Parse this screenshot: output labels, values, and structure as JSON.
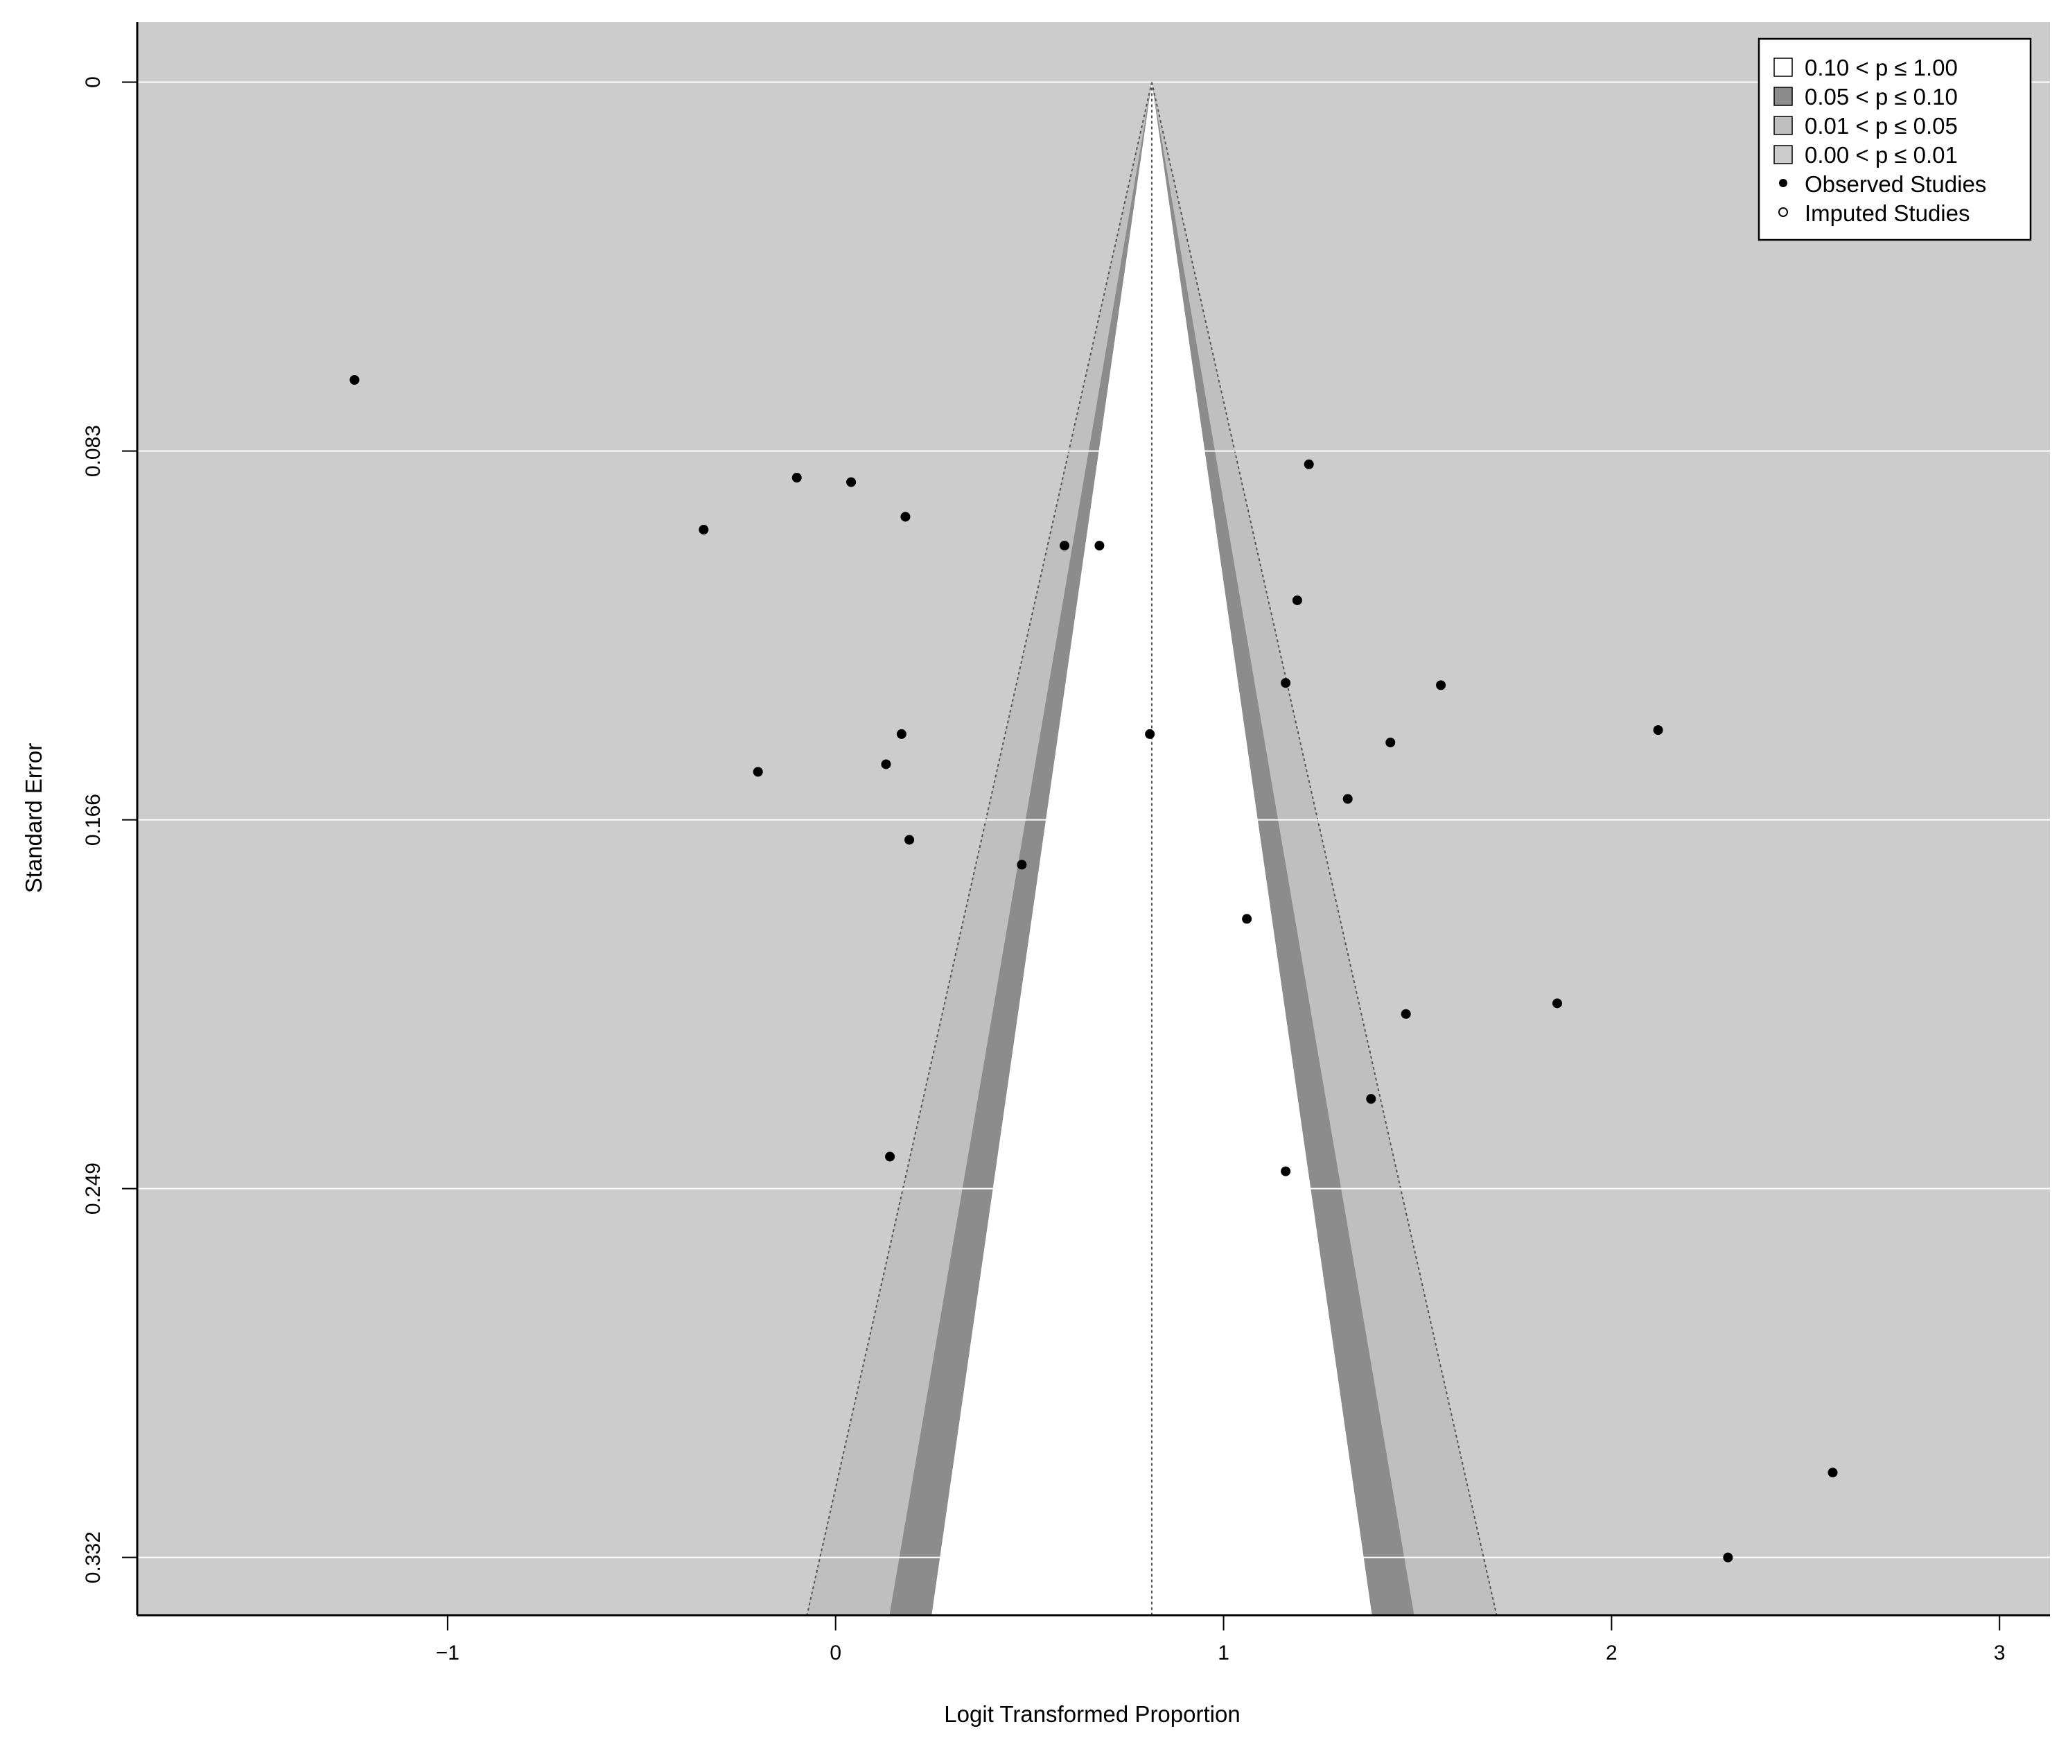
{
  "chart_data": {
    "type": "scatter",
    "subtype": "contour-enhanced funnel plot",
    "title": "",
    "xlabel": "Logit Transformed Proportion",
    "ylabel": "Standard Error",
    "xlim": [
      -1.8,
      3.13
    ],
    "ylim": [
      0.345,
      -0.0135
    ],
    "y_axis_reversed": true,
    "x_ticks": [
      -1,
      0,
      1,
      2,
      3
    ],
    "x_tick_labels": [
      "−1",
      "0",
      "1",
      "2",
      "3"
    ],
    "y_ticks": [
      0,
      0.083,
      0.166,
      0.249,
      0.332
    ],
    "y_tick_labels": [
      "0",
      "0.083",
      "0.166",
      "0.249",
      "0.332"
    ],
    "grid": "horizontal",
    "center_estimate": 0.815,
    "contour_levels": [
      {
        "label": "0.10 < p ≤ 1.00",
        "z": 1.645,
        "fill": "#ffffff"
      },
      {
        "label": "0.05 < p ≤ 0.10",
        "z": 1.96,
        "fill": "#8c8c8c"
      },
      {
        "label": "0.01 < p ≤ 0.05",
        "z": 2.576,
        "fill": "#bfbfbf"
      },
      {
        "label": "0.00 < p ≤ 0.01",
        "fill": "#cccccc"
      }
    ],
    "legend": {
      "position": "top-right",
      "entries": [
        {
          "label": "0.10 < p ≤ 1.00",
          "kind": "box",
          "fill": "#ffffff"
        },
        {
          "label": "0.05 < p ≤ 0.10",
          "kind": "box",
          "fill": "#8c8c8c"
        },
        {
          "label": "0.01 < p ≤ 0.05",
          "kind": "box",
          "fill": "#bfbfbf"
        },
        {
          "label": "0.00 < p ≤ 0.01",
          "kind": "box",
          "fill": "#cccccc"
        },
        {
          "label": "Observed Studies",
          "kind": "filled-point"
        },
        {
          "label": "Imputed Studies",
          "kind": "open-point"
        }
      ]
    },
    "series": [
      {
        "name": "Observed Studies",
        "points": [
          {
            "x": -1.24,
            "y": 0.067
          },
          {
            "x": 1.22,
            "y": 0.086
          },
          {
            "x": -0.1,
            "y": 0.089
          },
          {
            "x": 0.04,
            "y": 0.09
          },
          {
            "x": -0.34,
            "y": 0.1007
          },
          {
            "x": 0.18,
            "y": 0.0978
          },
          {
            "x": 0.59,
            "y": 0.1043
          },
          {
            "x": 0.68,
            "y": 0.1043
          },
          {
            "x": 1.19,
            "y": 0.1166
          },
          {
            "x": 1.16,
            "y": 0.1352
          },
          {
            "x": 1.56,
            "y": 0.1357
          },
          {
            "x": 0.17,
            "y": 0.1467
          },
          {
            "x": 0.81,
            "y": 0.1467
          },
          {
            "x": 2.12,
            "y": 0.1458
          },
          {
            "x": 1.43,
            "y": 0.1486
          },
          {
            "x": -0.2,
            "y": 0.1552
          },
          {
            "x": 0.13,
            "y": 0.1535
          },
          {
            "x": 1.32,
            "y": 0.1613
          },
          {
            "x": 0.19,
            "y": 0.1705
          },
          {
            "x": 0.48,
            "y": 0.1761
          },
          {
            "x": 1.06,
            "y": 0.1883
          },
          {
            "x": 1.86,
            "y": 0.2073
          },
          {
            "x": 1.47,
            "y": 0.2097
          },
          {
            "x": 1.38,
            "y": 0.2288
          },
          {
            "x": 0.14,
            "y": 0.2418
          },
          {
            "x": 1.16,
            "y": 0.2451
          },
          {
            "x": 2.57,
            "y": 0.3129
          },
          {
            "x": 2.3,
            "y": 0.332
          }
        ]
      },
      {
        "name": "Imputed Studies",
        "points": []
      }
    ]
  }
}
